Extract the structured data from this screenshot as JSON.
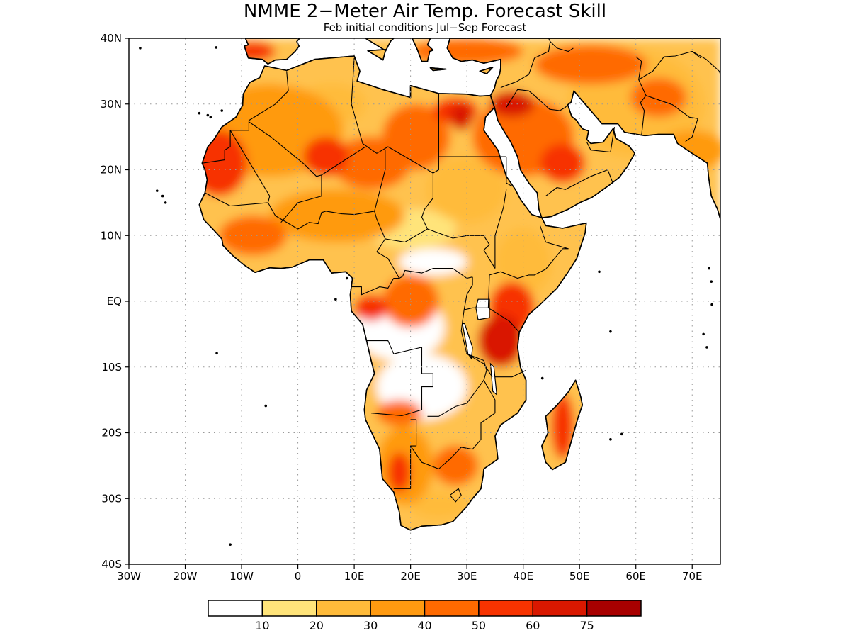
{
  "title": "NMME 2−Meter Air Temp. Forecast Skill",
  "subtitle": "Feb initial conditions  Jul−Sep Forecast",
  "map": {
    "lon_range": [
      -30,
      75
    ],
    "lat_range": [
      -40,
      40
    ],
    "lat_ticks": [
      {
        "value": 40,
        "label": "40N"
      },
      {
        "value": 30,
        "label": "30N"
      },
      {
        "value": 20,
        "label": "20N"
      },
      {
        "value": 10,
        "label": "10N"
      },
      {
        "value": 0,
        "label": "EQ"
      },
      {
        "value": -10,
        "label": "10S"
      },
      {
        "value": -20,
        "label": "20S"
      },
      {
        "value": -30,
        "label": "30S"
      },
      {
        "value": -40,
        "label": "40S"
      }
    ],
    "lon_ticks": [
      {
        "value": -30,
        "label": "30W"
      },
      {
        "value": -20,
        "label": "20W"
      },
      {
        "value": -10,
        "label": "10W"
      },
      {
        "value": 0,
        "label": "0"
      },
      {
        "value": 10,
        "label": "10E"
      },
      {
        "value": 20,
        "label": "20E"
      },
      {
        "value": 30,
        "label": "30E"
      },
      {
        "value": 40,
        "label": "40E"
      },
      {
        "value": 50,
        "label": "50E"
      },
      {
        "value": 60,
        "label": "60E"
      },
      {
        "value": 70,
        "label": "70E"
      }
    ],
    "grid": "dotted",
    "colors": [
      "#ffffff",
      "#ffe47a",
      "#ffbb3a",
      "#ff9a10",
      "#ff6a00",
      "#f73300",
      "#d91800",
      "#a80000"
    ],
    "skill_regions": [
      {
        "lon": -5,
        "lat": 26,
        "rlon": 13,
        "rlat": 7,
        "level": 3
      },
      {
        "lon": -14,
        "lat": 21,
        "rlon": 5,
        "rlat": 5,
        "level": 5
      },
      {
        "lon": -3,
        "lat": 31,
        "rlon": 3,
        "rlat": 2,
        "level": 1
      },
      {
        "lon": 6,
        "lat": 30,
        "rlon": 6,
        "rlat": 3,
        "level": 2
      },
      {
        "lon": 13,
        "lat": 21,
        "rlon": 7,
        "rlat": 4,
        "level": 4
      },
      {
        "lon": 5,
        "lat": 22,
        "rlon": 4,
        "rlat": 3,
        "level": 5
      },
      {
        "lon": 21,
        "lat": 25,
        "rlon": 6,
        "rlat": 5,
        "level": 4
      },
      {
        "lon": 28,
        "lat": 29,
        "rlon": 4,
        "rlat": 2,
        "level": 5
      },
      {
        "lon": 29,
        "lat": 28,
        "rlon": 2,
        "rlat": 2,
        "level": 6
      },
      {
        "lon": 30,
        "lat": 17,
        "rlon": 7,
        "rlat": 5,
        "level": 2
      },
      {
        "lon": 28,
        "lat": 15,
        "rlon": 3,
        "rlat": 3,
        "level": 1
      },
      {
        "lon": 7,
        "lat": 13,
        "rlon": 12,
        "rlat": 4,
        "level": 3
      },
      {
        "lon": -8,
        "lat": 10,
        "rlon": 6,
        "rlat": 3,
        "level": 4
      },
      {
        "lon": 20,
        "lat": 11,
        "rlon": 8,
        "rlat": 3,
        "level": 1
      },
      {
        "lon": 24,
        "lat": 6,
        "rlon": 6,
        "rlat": 2,
        "level": 0
      },
      {
        "lon": 40,
        "lat": 6,
        "rlon": 5,
        "rlat": 5,
        "level": 2
      },
      {
        "lon": 38,
        "lat": -1,
        "rlon": 4,
        "rlat": 4,
        "level": 5
      },
      {
        "lon": 36,
        "lat": -6,
        "rlon": 4,
        "rlat": 4,
        "level": 6
      },
      {
        "lon": 20,
        "lat": 0,
        "rlon": 5,
        "rlat": 4,
        "level": 4
      },
      {
        "lon": 13,
        "lat": -1,
        "rlon": 3,
        "rlat": 2,
        "level": 5
      },
      {
        "lon": 18,
        "lat": -4,
        "rlon": 8,
        "rlat": 5,
        "level": 0
      },
      {
        "lon": 22,
        "lat": -13,
        "rlon": 8,
        "rlat": 5,
        "level": 0
      },
      {
        "lon": 18,
        "lat": -17,
        "rlon": 4,
        "rlat": 2,
        "level": 4
      },
      {
        "lon": 19,
        "lat": -25,
        "rlon": 5,
        "rlat": 6,
        "level": 3
      },
      {
        "lon": 18,
        "lat": -26,
        "rlon": 2,
        "rlat": 3,
        "level": 5
      },
      {
        "lon": 28,
        "lat": -25,
        "rlon": 4,
        "rlat": 3,
        "level": 4
      },
      {
        "lon": 25,
        "lat": -31,
        "rlon": 5,
        "rlat": 2,
        "level": 2
      },
      {
        "lon": 47,
        "lat": -19,
        "rlon": 2,
        "rlat": 5,
        "level": 5
      },
      {
        "lon": 40,
        "lat": 25,
        "rlon": 9,
        "rlat": 6,
        "level": 4
      },
      {
        "lon": 38,
        "lat": 30,
        "rlon": 4,
        "rlat": 2,
        "level": 6
      },
      {
        "lon": 47,
        "lat": 21,
        "rlon": 4,
        "rlat": 3,
        "level": 5
      },
      {
        "lon": 60,
        "lat": 30,
        "rlon": 12,
        "rlat": 8,
        "level": 2
      },
      {
        "lon": 64,
        "lat": 31,
        "rlon": 5,
        "rlat": 3,
        "level": 4
      },
      {
        "lon": 52,
        "lat": 36,
        "rlon": 10,
        "rlat": 3,
        "level": 4
      },
      {
        "lon": 30,
        "lat": 38,
        "rlon": 10,
        "rlat": 2,
        "level": 4
      },
      {
        "lon": -8,
        "lat": 38,
        "rlon": 4,
        "rlat": 1.5,
        "level": 5
      },
      {
        "lon": 70,
        "lat": 23,
        "rlon": 6,
        "rlat": 3,
        "level": 3
      }
    ]
  },
  "colorbar": {
    "labels": [
      "10",
      "20",
      "30",
      "40",
      "50",
      "60",
      "75"
    ],
    "colors": [
      "#ffffff",
      "#ffe47a",
      "#ffbb3a",
      "#ff9a10",
      "#ff6a00",
      "#f73300",
      "#d91800",
      "#a80000"
    ]
  }
}
